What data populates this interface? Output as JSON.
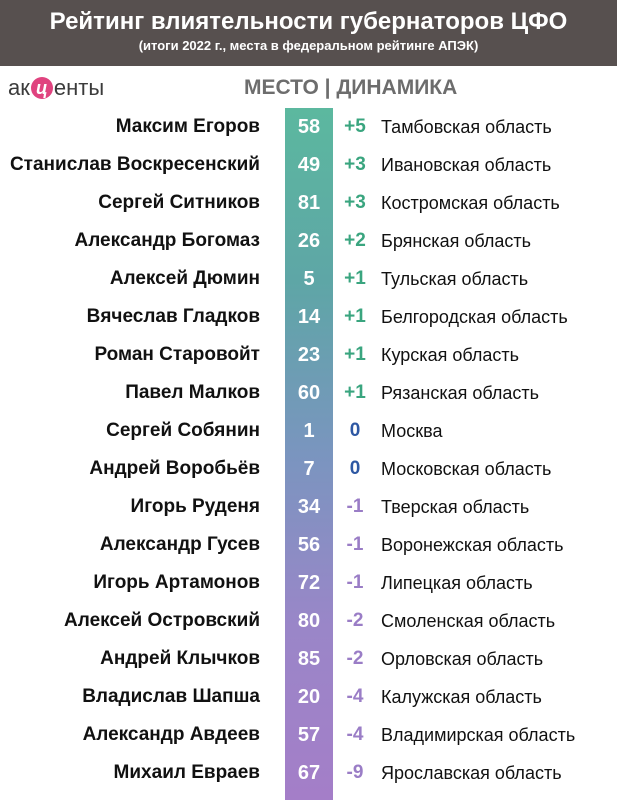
{
  "header": {
    "title": "Рейтинг влиятельности губернаторов ЦФО",
    "subtitle": "(итоги 2022 г., места в федеральном рейтинге АПЭК)"
  },
  "logo": {
    "left": "ак",
    "mid": "ц",
    "right": "енты"
  },
  "column_header": "МЕСТО | ДИНАМИКА",
  "rows": [
    {
      "name": "Максим Егоров",
      "rank": "58",
      "change": "+5",
      "region": "Тамбовская область"
    },
    {
      "name": "Станислав Воскресенский",
      "rank": "49",
      "change": "+3",
      "region": "Ивановская область"
    },
    {
      "name": "Сергей Ситников",
      "rank": "81",
      "change": "+3",
      "region": "Костромская область"
    },
    {
      "name": "Александр Богомаз",
      "rank": "26",
      "change": "+2",
      "region": "Брянская область"
    },
    {
      "name": "Алексей Дюмин",
      "rank": "5",
      "change": "+1",
      "region": "Тульская область"
    },
    {
      "name": "Вячеслав Гладков",
      "rank": "14",
      "change": "+1",
      "region": "Белгородская область"
    },
    {
      "name": "Роман Старовойт",
      "rank": "23",
      "change": "+1",
      "region": "Курская область"
    },
    {
      "name": "Павел Малков",
      "rank": "60",
      "change": "+1",
      "region": "Рязанская область"
    },
    {
      "name": "Сергей Собянин",
      "rank": "1",
      "change": "0",
      "region": "Москва"
    },
    {
      "name": "Андрей Воробьёв",
      "rank": "7",
      "change": "0",
      "region": "Московская область"
    },
    {
      "name": "Игорь Руденя",
      "rank": "34",
      "change": "-1",
      "region": "Тверская область"
    },
    {
      "name": "Александр Гусев",
      "rank": "56",
      "change": "-1",
      "region": "Воронежская область"
    },
    {
      "name": "Игорь Артамонов",
      "rank": "72",
      "change": "-1",
      "region": "Липецкая область"
    },
    {
      "name": "Алексей Островский",
      "rank": "80",
      "change": "-2",
      "region": "Смоленская область"
    },
    {
      "name": "Андрей Клычков",
      "rank": "85",
      "change": "-2",
      "region": "Орловская область"
    },
    {
      "name": "Владислав Шапша",
      "rank": "20",
      "change": "-4",
      "region": "Калужская область"
    },
    {
      "name": "Александр Авдеев",
      "rank": "57",
      "change": "-4",
      "region": "Владимирская область"
    },
    {
      "name": "Михаил Евраев",
      "rank": "67",
      "change": "-9",
      "region": "Ярославская область"
    }
  ]
}
